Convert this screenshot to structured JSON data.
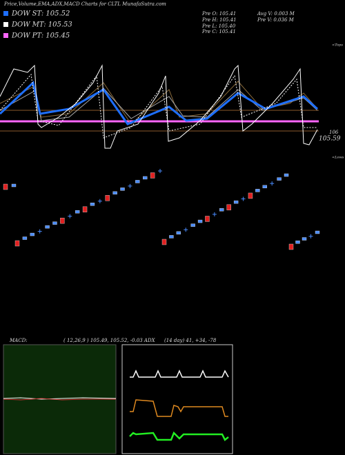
{
  "header": {
    "title": "Price,Volume,EMA,ADX,MACD Charts for CLTL MunafaSutra.com"
  },
  "legend": [
    {
      "label": "DOW ST: 105.52",
      "color": "#1e6fff"
    },
    {
      "label": "DOW MT: 105.53",
      "color": "#ffffff"
    },
    {
      "label": "DOW PT: 105.45",
      "color": "#ff66ff"
    }
  ],
  "info": {
    "open": "Pre  O: 105.41",
    "high": "Pre  H: 105.41",
    "low": "Pre  L: 105.40",
    "close": "Pre  C: 105.41",
    "avg_volume": "Avg V: 0.003  M",
    "prev_volume": "Pre  V: 0.036  M"
  },
  "price_panel": {
    "tops": "<Tops",
    "lows": "<Lows",
    "level": "106",
    "last": "105.59"
  },
  "indicators": {
    "macd_label": "MACD:",
    "macd_values": "( 12,26,9 ) 105.49, 105.52, -0.03 ADX",
    "adx_values": "(14  day) 41, +34, -78"
  }
}
